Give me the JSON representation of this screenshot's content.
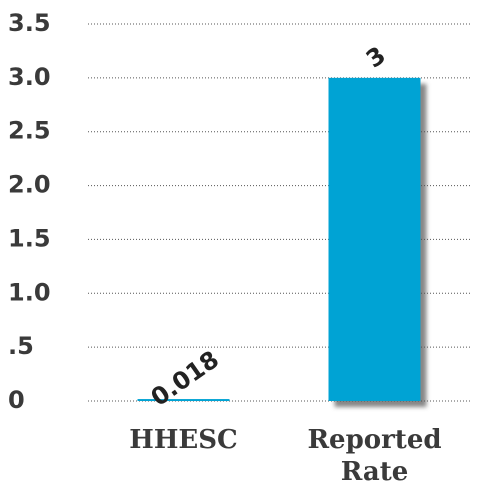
{
  "chart_data": {
    "type": "bar",
    "categories": [
      "HHESC",
      "Reported Rate"
    ],
    "values": [
      0.018,
      3
    ],
    "color": "#00a3d4",
    "ylim": [
      0,
      3.5
    ],
    "yticks": [
      0,
      {
        "value": 0.5,
        "label": ".5"
      },
      {
        "value": 1,
        "label": "1.0"
      },
      1.5,
      {
        "value": 2,
        "label": "2.0"
      },
      2.5,
      {
        "value": 3,
        "label": "3.0"
      },
      3.5
    ],
    "grid": true
  }
}
